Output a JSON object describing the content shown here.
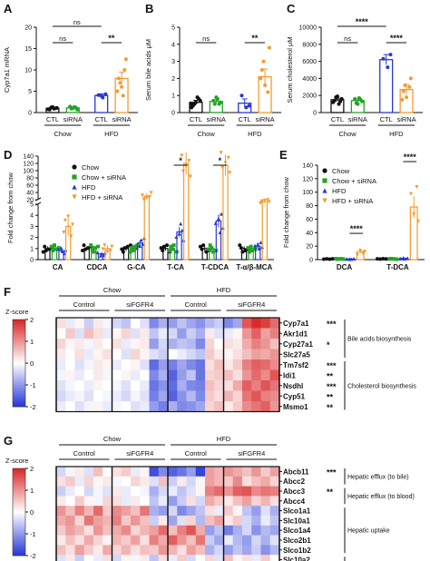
{
  "colors": {
    "black": "#111111",
    "green": "#22a524",
    "blue": "#2638d6",
    "orange": "#f59a2c",
    "heat_high": "#d92b2b",
    "heat_mid": "#ffffff",
    "heat_low": "#2a3ad8"
  },
  "panels": {
    "A": {
      "letter": "A",
      "ylabel": "Cyp7a1 mRNA",
      "yticks": [
        "0",
        "5",
        "10",
        "15",
        "20"
      ],
      "ylim": [
        0,
        20
      ],
      "groups": [
        "Chow",
        "HFD"
      ],
      "bars": [
        {
          "label": "CTL",
          "group": "Chow",
          "color": "black",
          "value": 1.0,
          "err": 0.2,
          "points": [
            0.8,
            1.2,
            0.9,
            1.1,
            0.7,
            1.3,
            1.0
          ]
        },
        {
          "label": "siRNA",
          "group": "Chow",
          "color": "green",
          "value": 1.1,
          "err": 0.25,
          "points": [
            0.9,
            1.3,
            0.7,
            1.4,
            1.0,
            1.2
          ]
        },
        {
          "label": "CTL",
          "group": "HFD",
          "color": "blue",
          "value": 4.0,
          "err": 0.4,
          "points": [
            3.5,
            4.3,
            4.1,
            3.9
          ]
        },
        {
          "label": "siRNA",
          "group": "HFD",
          "color": "orange",
          "value": 8.0,
          "err": 1.5,
          "points": [
            12.5,
            8.0,
            6.0,
            10.0,
            5.0,
            7.0,
            4.0
          ]
        }
      ],
      "sig": [
        {
          "from": 0,
          "to": 2,
          "text": "ns"
        },
        {
          "from": 0,
          "to": 1,
          "text": "ns"
        },
        {
          "from": 2,
          "to": 3,
          "text": "**"
        }
      ]
    },
    "B": {
      "letter": "B",
      "ylabel": "Serum bile acids μM",
      "yticks": [
        "0",
        "1",
        "2",
        "3",
        "4",
        "5"
      ],
      "ylim": [
        0,
        5
      ],
      "groups": [
        "Chow",
        "HFD"
      ],
      "bars": [
        {
          "label": "CTL",
          "group": "Chow",
          "color": "black",
          "value": 0.6,
          "err": 0.12,
          "points": [
            0.3,
            0.5,
            0.9,
            0.7,
            0.4,
            0.6,
            0.8,
            0.5
          ]
        },
        {
          "label": "siRNA",
          "group": "Chow",
          "color": "green",
          "value": 0.65,
          "err": 0.1,
          "points": [
            0.5,
            0.8,
            0.6,
            0.7,
            0.9,
            0.5
          ]
        },
        {
          "label": "CTL",
          "group": "HFD",
          "color": "blue",
          "value": 0.55,
          "err": 0.25,
          "points": [
            0.3,
            0.4,
            1.0
          ]
        },
        {
          "label": "siRNA",
          "group": "HFD",
          "color": "orange",
          "value": 2.1,
          "err": 0.45,
          "points": [
            3.8,
            2.5,
            1.6,
            1.2,
            2.0,
            3.0
          ]
        }
      ],
      "sig": [
        {
          "from": 0,
          "to": 1,
          "text": "ns"
        },
        {
          "from": 2,
          "to": 3,
          "text": "**"
        }
      ]
    },
    "C": {
      "letter": "C",
      "ylabel": "Serum cholesterol μM",
      "yticks": [
        "0",
        "2000",
        "4000",
        "6000",
        "8000",
        "10000"
      ],
      "ylim": [
        0,
        10000
      ],
      "groups": [
        "Chow",
        "HFD"
      ],
      "bars": [
        {
          "label": "CTL",
          "group": "Chow",
          "color": "black",
          "value": 1500,
          "err": 200,
          "points": [
            1200,
            1800,
            1000,
            1600,
            1400,
            1900,
            1300
          ]
        },
        {
          "label": "siRNA",
          "group": "Chow",
          "color": "green",
          "value": 1400,
          "err": 200,
          "points": [
            1100,
            1700,
            1300,
            1600,
            1000,
            1500
          ]
        },
        {
          "label": "CTL",
          "group": "HFD",
          "color": "blue",
          "value": 6200,
          "err": 600,
          "points": [
            5300,
            6800,
            6300
          ]
        },
        {
          "label": "siRNA",
          "group": "HFD",
          "color": "orange",
          "value": 2700,
          "err": 600,
          "points": [
            4000,
            2500,
            1800,
            3000,
            1500,
            3200
          ]
        }
      ],
      "sig": [
        {
          "from": 0,
          "to": 2,
          "text": "****"
        },
        {
          "from": 0,
          "to": 1,
          "text": "ns"
        },
        {
          "from": 2,
          "to": 3,
          "text": "****"
        }
      ]
    }
  },
  "groups_label": {
    "chow": "Chow",
    "hfd": "HFD",
    "ctl": "CTL",
    "sirna": "siRNA"
  },
  "legend": [
    "Chow",
    "Chow + siRNA",
    "HFD",
    "HFD + siRNA"
  ],
  "chart_data": [
    {
      "panel": "D",
      "type": "bar",
      "ylabel": "Fold change from chow",
      "yticks": [
        "0",
        "1",
        "2",
        "3",
        "4",
        "5",
        "20",
        "40",
        "60",
        "80",
        "100",
        "120",
        "140"
      ],
      "categories": [
        "CA",
        "CDCA",
        "G-CA",
        "T-CA",
        "T-CDCA",
        "T-α/β-MCA"
      ],
      "series": [
        {
          "name": "Chow",
          "values": [
            1,
            1,
            1,
            1,
            1,
            1
          ]
        },
        {
          "name": "Chow + siRNA",
          "values": [
            1,
            1,
            1,
            1,
            1,
            1
          ]
        },
        {
          "name": "HFD",
          "values": [
            0.8,
            0.5,
            1.5,
            2.5,
            3.5,
            1.2
          ]
        },
        {
          "name": "HFD + siRNA",
          "values": [
            3,
            1,
            30,
            120,
            115,
            15
          ]
        }
      ],
      "sig": [
        {
          "category": "T-CA",
          "text": "*"
        },
        {
          "category": "T-CDCA",
          "text": "*"
        }
      ]
    },
    {
      "panel": "E",
      "type": "bar",
      "ylabel": "Fold change from chow",
      "yticks": [
        "0",
        "20",
        "40",
        "60",
        "80",
        "100",
        "120",
        "140"
      ],
      "ylim": [
        0,
        140
      ],
      "categories": [
        "DCA",
        "T-DCA"
      ],
      "series": [
        {
          "name": "Chow",
          "values": [
            1,
            1
          ]
        },
        {
          "name": "Chow + siRNA",
          "values": [
            1,
            1
          ]
        },
        {
          "name": "HFD",
          "values": [
            1,
            2
          ]
        },
        {
          "name": "HFD + siRNA",
          "values": [
            12,
            78
          ]
        }
      ],
      "sig": [
        {
          "category": "DCA",
          "text": "****"
        },
        {
          "category": "T-DCA",
          "text": "****"
        }
      ]
    },
    {
      "panel": "F",
      "type": "heatmap",
      "scale_label": "Z-score",
      "scale_ticks": [
        "2",
        "1",
        "0",
        "-1",
        "-2"
      ],
      "groups": [
        "Chow",
        "HFD"
      ],
      "subgroups": [
        "Control",
        "siFGFR4",
        "Control",
        "siFGFR4"
      ],
      "rows": [
        "Cyp7a1",
        "Akr1d1",
        "Cyp27a1",
        "Slc27a5",
        "Tm7sf2",
        "Idi1",
        "Nsdhl",
        "Cyp51",
        "Msmo1"
      ],
      "stars": [
        "***",
        "",
        "*",
        "",
        "***",
        "**",
        "***",
        "**",
        "**"
      ],
      "annotations": [
        {
          "text": "Bile acids biosynthesis",
          "rows": [
            0,
            3
          ]
        },
        {
          "text": "Cholesterol biosynthesis",
          "rows": [
            4,
            8
          ]
        }
      ],
      "values": [
        [
          0.3,
          -0.2,
          0.1,
          -0.5,
          0.2,
          -0.1,
          -0.4,
          -0.6,
          0.0,
          -0.3,
          -1.2,
          -0.8,
          -1.0,
          -0.6,
          -0.9,
          -1.1,
          -0.7,
          -0.5,
          -1.2,
          -0.9,
          1.6,
          2.0,
          1.8,
          1.4
        ],
        [
          0.0,
          0.5,
          -0.3,
          0.6,
          0.3,
          -0.2,
          0.1,
          0.4,
          -0.3,
          0.2,
          -0.6,
          -0.2,
          -0.4,
          -1.0,
          -0.5,
          -0.8,
          0.2,
          -0.3,
          -0.2,
          0.1,
          1.0,
          1.5,
          0.9,
          1.2
        ],
        [
          0.4,
          0.1,
          0.2,
          -0.1,
          0.2,
          0.0,
          0.3,
          -0.2,
          0.1,
          0.2,
          -1.0,
          -0.4,
          -0.8,
          -0.6,
          -0.7,
          -1.2,
          0.4,
          0.0,
          0.3,
          0.2,
          0.8,
          1.2,
          1.0,
          0.6
        ],
        [
          0.2,
          0.0,
          0.3,
          -0.2,
          0.1,
          0.3,
          0.0,
          -0.3,
          0.4,
          0.1,
          -0.3,
          -0.5,
          0.0,
          -0.2,
          -0.4,
          -0.6,
          0.5,
          0.2,
          0.1,
          0.3,
          0.6,
          0.9,
          0.8,
          1.0
        ],
        [
          -0.2,
          0.0,
          -0.3,
          -0.1,
          0.2,
          0.1,
          -0.2,
          0.0,
          0.1,
          -0.3,
          -1.5,
          -1.0,
          -1.3,
          -0.9,
          -1.2,
          -1.4,
          0.3,
          0.6,
          0.2,
          0.5,
          1.2,
          1.5,
          1.4,
          1.1
        ],
        [
          -0.1,
          0.1,
          -0.2,
          0.0,
          0.2,
          -0.1,
          0.0,
          0.1,
          -0.2,
          0.0,
          -1.2,
          -0.8,
          -1.6,
          -1.0,
          -0.6,
          -1.4,
          0.4,
          0.5,
          0.6,
          0.3,
          1.0,
          1.4,
          1.1,
          1.6
        ],
        [
          -0.3,
          -0.1,
          0.0,
          -0.2,
          0.1,
          0.0,
          -0.1,
          -0.3,
          0.0,
          -0.2,
          -1.4,
          -1.1,
          -1.5,
          -0.8,
          -1.2,
          -1.3,
          0.6,
          0.4,
          0.3,
          0.8,
          1.5,
          1.2,
          1.6,
          1.3
        ],
        [
          -0.4,
          -0.2,
          -0.1,
          -0.3,
          0.0,
          -0.1,
          -0.2,
          -0.4,
          -0.1,
          -0.3,
          -1.3,
          -0.9,
          -1.6,
          -1.1,
          -0.7,
          -1.2,
          0.5,
          0.3,
          0.7,
          0.4,
          1.3,
          1.6,
          1.2,
          1.1
        ],
        [
          -0.2,
          0.0,
          -0.3,
          -0.1,
          0.1,
          -0.2,
          -0.1,
          0.0,
          -0.3,
          -0.2,
          -1.0,
          -1.3,
          -0.8,
          -1.2,
          -1.1,
          -0.9,
          0.4,
          0.6,
          0.2,
          0.5,
          1.1,
          1.3,
          1.5,
          1.0
        ]
      ]
    },
    {
      "panel": "G",
      "type": "heatmap",
      "scale_label": "Z-score",
      "scale_ticks": [
        "2",
        "1",
        "0",
        "-1",
        "-2"
      ],
      "groups": [
        "Chow",
        "HFD"
      ],
      "subgroups": [
        "Control",
        "siFGFR4",
        "Control",
        "siFGFR4"
      ],
      "rows": [
        "Abcb11",
        "Abcc2",
        "Abcc3",
        "Abcc4",
        "Slco1a1",
        "Slc10a1",
        "Slco1a4",
        "Slco2b1",
        "Slco1b2",
        "Slc10a2",
        "Slc51b"
      ],
      "stars": [
        "***",
        "",
        "**",
        "",
        "",
        "",
        "",
        "",
        "",
        "",
        ""
      ],
      "annotations": [
        {
          "text": "Hepatic efflux (to bile)",
          "rows": [
            0,
            1
          ]
        },
        {
          "text": "Hepatic efflux (to blood)",
          "rows": [
            2,
            3
          ]
        },
        {
          "text": "Hepatic uptake",
          "rows": [
            4,
            8
          ]
        },
        {
          "text": "Intestinal absorption",
          "rows": [
            9,
            10
          ]
        }
      ],
      "values": [
        [
          -0.4,
          -0.1,
          0.2,
          -0.3,
          0.6,
          0.0,
          0.3,
          0.5,
          -0.2,
          0.1,
          -1.8,
          -1.2,
          -1.6,
          -1.4,
          -1.0,
          -1.9,
          0.9,
          0.7,
          1.0,
          0.8,
          0.6,
          1.0,
          0.5,
          0.9
        ],
        [
          0.3,
          0.5,
          -0.2,
          0.4,
          0.1,
          0.2,
          -0.1,
          0.0,
          0.4,
          0.2,
          -0.3,
          0.6,
          -0.5,
          0.2,
          -0.4,
          0.1,
          0.9,
          0.7,
          0.5,
          1.1,
          0.3,
          0.6,
          0.8,
          0.4
        ],
        [
          -0.5,
          -0.2,
          0.0,
          -0.4,
          -0.1,
          -0.3,
          0.2,
          -0.2,
          0.0,
          -0.1,
          -0.8,
          -0.4,
          -0.2,
          -0.6,
          -0.3,
          0.1,
          1.2,
          1.4,
          1.0,
          1.5,
          1.6,
          1.1,
          1.3,
          1.2
        ],
        [
          0.2,
          0.0,
          0.5,
          0.1,
          -0.1,
          0.4,
          0.3,
          -0.2,
          0.2,
          0.0,
          -0.6,
          -0.2,
          -1.0,
          -0.5,
          0.3,
          -0.4,
          0.8,
          0.5,
          0.2,
          0.6,
          0.9,
          0.4,
          0.7,
          0.3
        ],
        [
          1.0,
          0.6,
          1.2,
          0.7,
          1.4,
          0.5,
          1.1,
          0.9,
          0.6,
          1.3,
          -0.8,
          -1.0,
          -0.4,
          -1.2,
          -0.9,
          -0.6,
          0.3,
          -0.2,
          0.5,
          0.1,
          -0.6,
          -1.0,
          -0.3,
          -0.8
        ],
        [
          0.8,
          1.0,
          0.4,
          1.3,
          0.9,
          0.7,
          1.2,
          0.5,
          1.0,
          0.6,
          -0.5,
          0.2,
          -0.9,
          -0.3,
          0.4,
          -0.7,
          0.6,
          0.9,
          0.2,
          0.5,
          -0.4,
          -0.8,
          -0.2,
          -0.6
        ],
        [
          0.5,
          0.9,
          0.7,
          0.3,
          1.0,
          0.6,
          0.8,
          1.1,
          0.4,
          0.7,
          0.9,
          1.4,
          0.6,
          1.2,
          1.6,
          0.8,
          -1.0,
          -0.6,
          -1.3,
          -0.8,
          -0.4,
          -1.1,
          -0.7,
          -0.9
        ],
        [
          0.2,
          0.6,
          0.3,
          0.8,
          0.4,
          0.1,
          0.7,
          0.5,
          0.9,
          0.3,
          1.2,
          0.8,
          1.5,
          1.0,
          0.6,
          1.3,
          -0.5,
          -0.9,
          -0.2,
          -0.7,
          -1.0,
          -0.4,
          -0.8,
          -0.3
        ],
        [
          0.6,
          0.3,
          0.9,
          0.5,
          0.2,
          0.8,
          0.4,
          0.7,
          0.3,
          0.6,
          0.5,
          1.0,
          0.7,
          0.3,
          0.9,
          0.6,
          -0.8,
          -0.4,
          -1.0,
          -0.6,
          -0.9,
          -0.5,
          -1.1,
          -0.7
        ],
        [
          -0.3,
          0.2,
          -0.5,
          0.0,
          -0.2,
          0.3,
          -0.4,
          0.1,
          -0.1,
          0.2,
          -0.6,
          0.3,
          -0.2,
          0.5,
          -0.4,
          0.0,
          0.4,
          -0.3,
          0.6,
          0.1,
          0.3,
          -0.2,
          0.5,
          0.0
        ],
        [
          0.4,
          -0.2,
          0.3,
          0.6,
          0.0,
          -0.3,
          0.5,
          0.2,
          -0.1,
          0.4,
          -0.2,
          0.5,
          0.1,
          -0.4,
          0.3,
          0.6,
          -0.5,
          0.2,
          -0.3,
          0.4,
          0.0,
          -0.4,
          0.2,
          -0.1
        ]
      ]
    }
  ]
}
